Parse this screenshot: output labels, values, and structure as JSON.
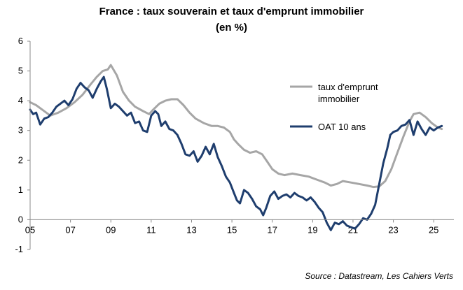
{
  "chart_data": {
    "type": "line",
    "title": "France : taux souverain et taux d'emprunt immobilier",
    "subtitle": "(en %)",
    "source": "Source : Datastream,  Les Cahiers Verts",
    "xlim": [
      2005,
      2026
    ],
    "ylim": [
      -1,
      6
    ],
    "y_ticks": [
      "6",
      "5",
      "4",
      "3",
      "2",
      "1",
      "0",
      "-1"
    ],
    "x_ticks": [
      "05",
      "07",
      "09",
      "11",
      "13",
      "15",
      "17",
      "19",
      "21",
      "23",
      "25"
    ],
    "grid": "none",
    "legend_position": "right",
    "series": [
      {
        "name": "taux d'emprunt immobilier",
        "name_lines": [
          "taux d'emprunt",
          "immobilier"
        ],
        "color": "#a6a6a6",
        "x": [
          2005.0,
          2005.3,
          2005.6,
          2006.0,
          2006.4,
          2006.8,
          2007.2,
          2007.6,
          2008.0,
          2008.3,
          2008.6,
          2008.85,
          2009.0,
          2009.3,
          2009.6,
          2009.9,
          2010.2,
          2010.6,
          2010.9,
          2011.1,
          2011.4,
          2011.7,
          2012.0,
          2012.3,
          2012.6,
          2012.9,
          2013.2,
          2013.6,
          2014.0,
          2014.3,
          2014.6,
          2014.9,
          2015.1,
          2015.3,
          2015.6,
          2015.9,
          2016.2,
          2016.5,
          2016.8,
          2017.0,
          2017.3,
          2017.6,
          2018.0,
          2018.4,
          2018.8,
          2019.2,
          2019.6,
          2019.9,
          2020.2,
          2020.5,
          2020.9,
          2021.3,
          2021.7,
          2022.0,
          2022.3,
          2022.6,
          2022.9,
          2023.2,
          2023.5,
          2023.8,
          2024.0,
          2024.3,
          2024.6,
          2024.9,
          2025.2,
          2025.4
        ],
        "values": [
          3.95,
          3.85,
          3.7,
          3.5,
          3.6,
          3.75,
          3.95,
          4.2,
          4.55,
          4.8,
          5.0,
          5.05,
          5.2,
          4.85,
          4.3,
          4.0,
          3.8,
          3.65,
          3.55,
          3.7,
          3.9,
          4.0,
          4.05,
          4.05,
          3.85,
          3.6,
          3.4,
          3.25,
          3.15,
          3.15,
          3.1,
          2.95,
          2.7,
          2.55,
          2.35,
          2.25,
          2.3,
          2.2,
          1.9,
          1.7,
          1.55,
          1.5,
          1.55,
          1.5,
          1.45,
          1.35,
          1.25,
          1.15,
          1.2,
          1.3,
          1.25,
          1.2,
          1.15,
          1.1,
          1.12,
          1.3,
          1.7,
          2.25,
          2.8,
          3.3,
          3.55,
          3.6,
          3.45,
          3.25,
          3.1,
          3.05
        ]
      },
      {
        "name": "OAT 10 ans",
        "color": "#1f3e6e",
        "x": [
          2005.0,
          2005.15,
          2005.3,
          2005.5,
          2005.7,
          2005.9,
          2006.1,
          2006.3,
          2006.5,
          2006.7,
          2006.9,
          2007.1,
          2007.3,
          2007.5,
          2007.7,
          2007.9,
          2008.1,
          2008.3,
          2008.5,
          2008.65,
          2008.8,
          2009.0,
          2009.2,
          2009.4,
          2009.6,
          2009.8,
          2010.0,
          2010.2,
          2010.4,
          2010.6,
          2010.8,
          2011.0,
          2011.2,
          2011.35,
          2011.5,
          2011.7,
          2011.9,
          2012.1,
          2012.3,
          2012.5,
          2012.7,
          2012.9,
          2013.1,
          2013.3,
          2013.5,
          2013.7,
          2013.9,
          2014.1,
          2014.3,
          2014.5,
          2014.7,
          2014.9,
          2015.1,
          2015.25,
          2015.4,
          2015.6,
          2015.8,
          2016.0,
          2016.2,
          2016.4,
          2016.55,
          2016.7,
          2016.9,
          2017.1,
          2017.3,
          2017.5,
          2017.7,
          2017.9,
          2018.1,
          2018.3,
          2018.5,
          2018.7,
          2018.9,
          2019.1,
          2019.3,
          2019.5,
          2019.7,
          2019.9,
          2020.1,
          2020.3,
          2020.5,
          2020.7,
          2020.9,
          2021.1,
          2021.3,
          2021.5,
          2021.7,
          2021.9,
          2022.1,
          2022.3,
          2022.5,
          2022.7,
          2022.85,
          2023.0,
          2023.2,
          2023.4,
          2023.6,
          2023.8,
          2024.0,
          2024.2,
          2024.4,
          2024.6,
          2024.8,
          2025.0,
          2025.2,
          2025.4
        ],
        "values": [
          3.7,
          3.55,
          3.6,
          3.2,
          3.4,
          3.45,
          3.6,
          3.8,
          3.9,
          4.0,
          3.85,
          4.05,
          4.4,
          4.6,
          4.45,
          4.35,
          4.1,
          4.4,
          4.65,
          4.8,
          4.4,
          3.75,
          3.9,
          3.8,
          3.65,
          3.5,
          3.6,
          3.25,
          3.3,
          3.0,
          2.95,
          3.5,
          3.65,
          3.55,
          3.15,
          3.3,
          3.05,
          3.0,
          2.85,
          2.55,
          2.2,
          2.15,
          2.3,
          1.95,
          2.15,
          2.45,
          2.2,
          2.55,
          2.1,
          1.8,
          1.45,
          1.25,
          0.9,
          0.65,
          0.55,
          1.0,
          0.9,
          0.7,
          0.45,
          0.35,
          0.15,
          0.4,
          0.8,
          0.95,
          0.7,
          0.8,
          0.85,
          0.75,
          0.9,
          0.8,
          0.75,
          0.65,
          0.75,
          0.6,
          0.4,
          0.25,
          -0.1,
          -0.35,
          -0.1,
          -0.15,
          -0.05,
          -0.2,
          -0.25,
          -0.3,
          -0.15,
          0.05,
          0.0,
          0.2,
          0.5,
          1.2,
          1.9,
          2.4,
          2.85,
          2.95,
          3.0,
          3.15,
          3.2,
          3.35,
          2.85,
          3.3,
          3.05,
          2.85,
          3.1,
          3.0,
          3.1,
          3.15
        ]
      }
    ]
  }
}
